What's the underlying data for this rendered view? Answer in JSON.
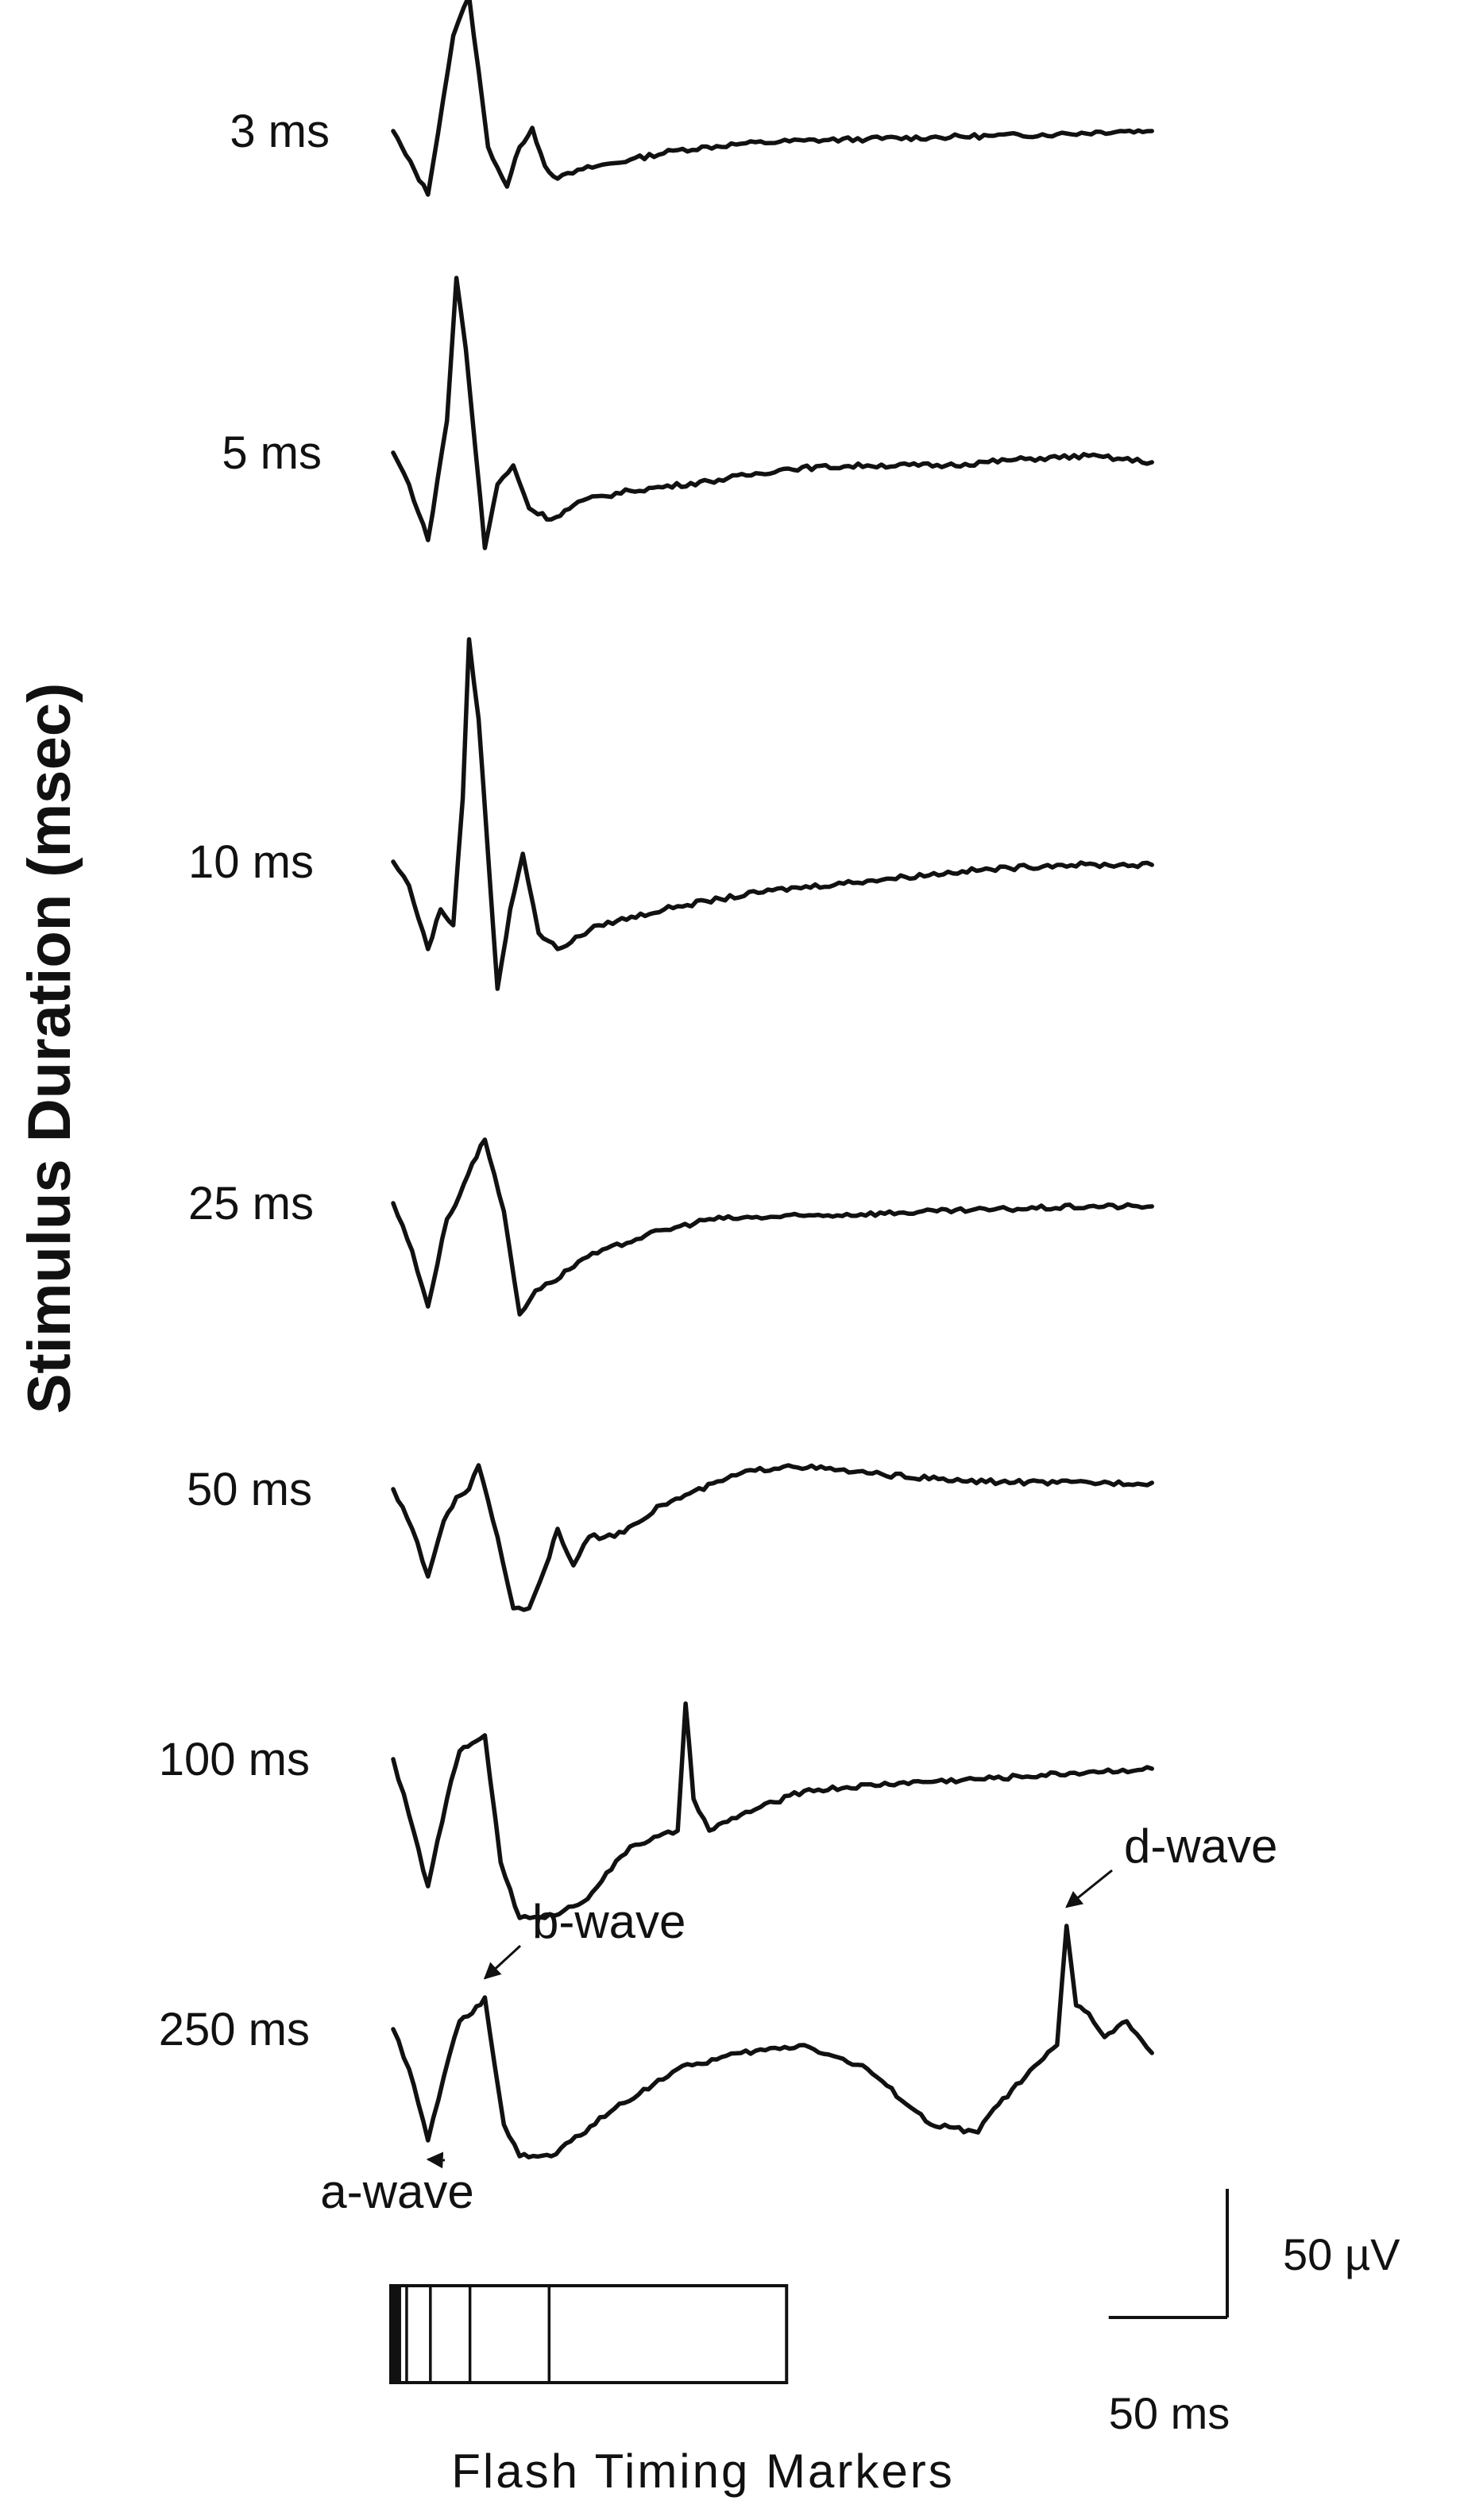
{
  "chart_data": {
    "type": "line",
    "title": "",
    "ylabel": "Stimulus Duration (msec)",
    "xlabel": "",
    "x_unit": "ms",
    "y_unit": "µV",
    "record_length_ms": 480,
    "series": [
      {
        "name": "3 ms",
        "x": [
          0,
          8,
          22,
          38,
          48,
          60,
          72,
          80,
          88,
          96,
          104,
          120,
          150,
          180,
          220,
          260,
          300,
          340,
          380,
          420,
          460,
          480
        ],
        "y": [
          0,
          -15,
          -40,
          60,
          85,
          -10,
          -35,
          -10,
          2,
          -22,
          -30,
          -24,
          -18,
          -12,
          -8,
          -6,
          -5,
          -4,
          -3,
          -2,
          0,
          0
        ]
      },
      {
        "name": "5 ms",
        "x": [
          0,
          10,
          22,
          34,
          40,
          46,
          58,
          66,
          76,
          86,
          100,
          120,
          150,
          200,
          250,
          300,
          350,
          400,
          440,
          480
        ],
        "y": [
          0,
          -20,
          -55,
          20,
          110,
          65,
          -60,
          -20,
          -8,
          -35,
          -42,
          -30,
          -24,
          -18,
          -10,
          -8,
          -8,
          -4,
          -2,
          -6
        ]
      },
      {
        "name": "10 ms",
        "x": [
          0,
          10,
          22,
          30,
          38,
          44,
          48,
          54,
          66,
          74,
          82,
          92,
          104,
          130,
          180,
          240,
          300,
          360,
          420,
          480
        ],
        "y": [
          0,
          -15,
          -55,
          -30,
          -40,
          40,
          140,
          90,
          -80,
          -30,
          5,
          -45,
          -55,
          -40,
          -28,
          -18,
          -12,
          -6,
          -2,
          -2
        ]
      },
      {
        "name": "25 ms",
        "x": [
          0,
          12,
          22,
          34,
          42,
          50,
          58,
          70,
          80,
          90,
          100,
          120,
          160,
          200,
          260,
          320,
          380,
          440,
          480
        ],
        "y": [
          0,
          -30,
          -65,
          -10,
          5,
          25,
          40,
          -5,
          -70,
          -55,
          -50,
          -35,
          -20,
          -10,
          -8,
          -6,
          -4,
          -2,
          -2
        ]
      },
      {
        "name": "50 ms",
        "x": [
          0,
          12,
          22,
          32,
          40,
          48,
          54,
          66,
          76,
          86,
          96,
          104,
          114,
          124,
          140,
          170,
          220,
          250,
          300,
          360,
          420,
          480
        ],
        "y": [
          0,
          -25,
          -55,
          -20,
          -5,
          0,
          15,
          -30,
          -75,
          -75,
          -50,
          -25,
          -48,
          -30,
          -30,
          -10,
          10,
          15,
          10,
          5,
          4,
          4
        ]
      },
      {
        "name": "100 ms",
        "x": [
          0,
          10,
          22,
          34,
          42,
          50,
          58,
          68,
          80,
          96,
          120,
          150,
          180,
          185,
          190,
          200,
          220,
          260,
          320,
          380,
          440,
          480
        ],
        "y": [
          0,
          -35,
          -80,
          -25,
          5,
          10,
          15,
          -65,
          -100,
          -100,
          -90,
          -55,
          -45,
          35,
          -25,
          -45,
          -35,
          -20,
          -15,
          -12,
          -8,
          -6
        ]
      },
      {
        "name": "250 ms",
        "x": [
          0,
          10,
          22,
          32,
          42,
          50,
          58,
          70,
          80,
          100,
          140,
          180,
          220,
          260,
          300,
          340,
          370,
          380,
          400,
          420,
          426,
          432,
          440,
          450,
          464,
          480
        ],
        "y": [
          0,
          -25,
          -70,
          -30,
          5,
          10,
          20,
          -60,
          -80,
          -80,
          -50,
          -25,
          -15,
          -10,
          -25,
          -60,
          -65,
          -50,
          -30,
          -10,
          65,
          15,
          10,
          -5,
          5,
          -15
        ]
      }
    ],
    "annotations": [
      {
        "text": "a-wave",
        "series": "250 ms",
        "x": 22
      },
      {
        "text": "b-wave",
        "series": "250 ms",
        "x": 58
      },
      {
        "text": "d-wave",
        "series": "250 ms",
        "x": 426
      }
    ],
    "flash_bar": {
      "label": "Flash Timing Markers",
      "marker_durations_ms": [
        3,
        5,
        10,
        25,
        50,
        100,
        250
      ]
    },
    "scale_bar": {
      "vertical_value": 50,
      "vertical_label": "50 µV",
      "horizontal_value": 50,
      "horizontal_label": "50 ms"
    },
    "grid": false,
    "legend": "none"
  }
}
